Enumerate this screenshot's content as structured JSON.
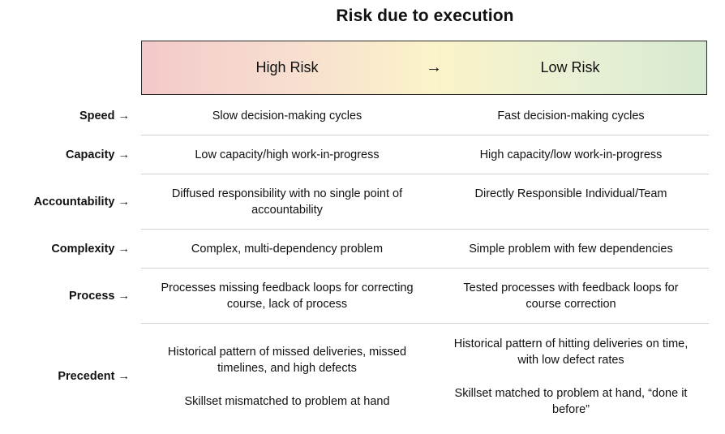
{
  "title": "Risk due to execution",
  "banner": {
    "high": "High Risk",
    "arrow": "→",
    "low": "Low Risk",
    "gradient_colors": [
      "#f3c9c9",
      "#fbf3c9",
      "#d6e9d0"
    ]
  },
  "rows": [
    {
      "label": "Speed →",
      "high": [
        "Slow decision-making cycles"
      ],
      "low": [
        "Fast decision-making cycles"
      ]
    },
    {
      "label": "Capacity →",
      "high": [
        "Low capacity/high work-in-progress"
      ],
      "low": [
        "High capacity/low work-in-progress"
      ]
    },
    {
      "label": "Accountability →",
      "high": [
        "Diffused responsibility with no single point of accountability"
      ],
      "low": [
        "Directly Responsible Individual/Team"
      ]
    },
    {
      "label": "Complexity →",
      "high": [
        "Complex, multi-dependency problem"
      ],
      "low": [
        "Simple problem with few dependencies"
      ]
    },
    {
      "label": "Process →",
      "high": [
        "Processes missing feedback loops for correcting course, lack of process"
      ],
      "low": [
        "Tested processes with feedback loops for course correction"
      ]
    },
    {
      "label": "Precedent →",
      "high": [
        "Historical pattern of missed deliveries, missed timelines, and high defects",
        "Skillset mismatched to problem at hand"
      ],
      "low": [
        "Historical pattern of hitting deliveries on time, with low defect rates",
        "Skillset matched to problem at hand, “done it before”"
      ]
    }
  ]
}
